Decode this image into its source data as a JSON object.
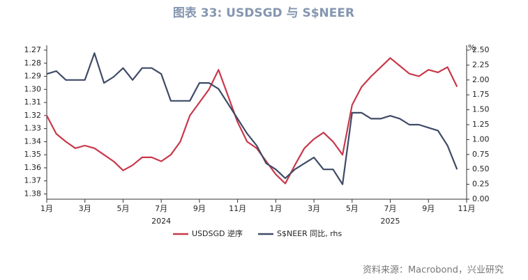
{
  "chart_data": {
    "type": "line",
    "title": "图表 33: USDSGD 与 S$NEER",
    "x": [
      0,
      1,
      2,
      3,
      4,
      5,
      6,
      7,
      8,
      9,
      10,
      11,
      12,
      13,
      14,
      15,
      16,
      17,
      18,
      19,
      20,
      21,
      22,
      23,
      24,
      25,
      26,
      27,
      28,
      29,
      30,
      31,
      32,
      33,
      34,
      35,
      36,
      37,
      38,
      39,
      40,
      41,
      42,
      43
    ],
    "xlim": [
      0,
      44
    ],
    "xticks": [
      {
        "value": 0,
        "label": "1月"
      },
      {
        "value": 4,
        "label": "3月"
      },
      {
        "value": 8,
        "label": "5月"
      },
      {
        "value": 12,
        "label": "7月"
      },
      {
        "value": 16,
        "label": "9月"
      },
      {
        "value": 20,
        "label": "11月"
      },
      {
        "value": 24,
        "label": "1月"
      },
      {
        "value": 28,
        "label": "3月"
      },
      {
        "value": 32,
        "label": "5月"
      },
      {
        "value": 36,
        "label": "7月"
      },
      {
        "value": 40,
        "label": "9月"
      },
      {
        "value": 44,
        "label": "11月"
      }
    ],
    "x_group_labels": [
      {
        "value": 12,
        "label": "2024"
      },
      {
        "value": 36,
        "label": "2025"
      }
    ],
    "ylim": [
      1.27,
      1.384
    ],
    "y_inverted": true,
    "yticks": [
      1.27,
      1.28,
      1.29,
      {
        "value": 1.3,
        "label": "1.30"
      },
      1.31,
      1.32,
      1.33,
      1.34,
      1.35,
      1.36,
      1.37,
      1.38
    ],
    "y2lim": [
      0,
      2.5
    ],
    "y2_unit": "%",
    "y2ticks": [
      {
        "value": 0,
        "label": "0.00"
      },
      0.25,
      {
        "value": 0.5,
        "label": "0.50"
      },
      0.75,
      {
        "value": 1,
        "label": "1.00"
      },
      1.25,
      {
        "value": 1.5,
        "label": "1.50"
      },
      1.75,
      {
        "value": 2,
        "label": "2.00"
      },
      2.25,
      {
        "value": 2.5,
        "label": "2.50"
      }
    ],
    "series": [
      {
        "name": "USDSGD 逆序",
        "color": "#c8384a",
        "axis": "y",
        "values": [
          1.32,
          1.334,
          1.34,
          1.345,
          1.343,
          1.345,
          1.35,
          1.355,
          1.362,
          1.358,
          1.352,
          1.352,
          1.355,
          1.35,
          1.34,
          1.32,
          1.31,
          1.3,
          1.285,
          1.305,
          1.325,
          1.34,
          1.345,
          1.355,
          1.365,
          1.372,
          1.358,
          1.345,
          1.338,
          1.333,
          1.34,
          1.35,
          1.312,
          1.298,
          1.29,
          1.283,
          1.276,
          1.282,
          1.288,
          1.29,
          1.285,
          1.287,
          1.283,
          1.298
        ]
      },
      {
        "name": "S$NEER 同比, rhs",
        "color": "#3e4a66",
        "axis": "y2",
        "values": [
          2.1,
          2.15,
          2.0,
          2.0,
          2.0,
          2.45,
          1.95,
          2.05,
          2.2,
          2.0,
          2.2,
          2.2,
          2.1,
          1.65,
          1.65,
          1.65,
          1.95,
          1.95,
          1.85,
          1.6,
          1.35,
          1.1,
          0.9,
          0.6,
          0.5,
          0.35,
          0.5,
          0.6,
          0.7,
          0.5,
          0.5,
          0.25,
          1.45,
          1.45,
          1.35,
          1.35,
          1.4,
          1.35,
          1.25,
          1.25,
          1.2,
          1.15,
          0.9,
          0.5
        ]
      }
    ],
    "source": "资料来源：Macrobond，兴业研究"
  }
}
